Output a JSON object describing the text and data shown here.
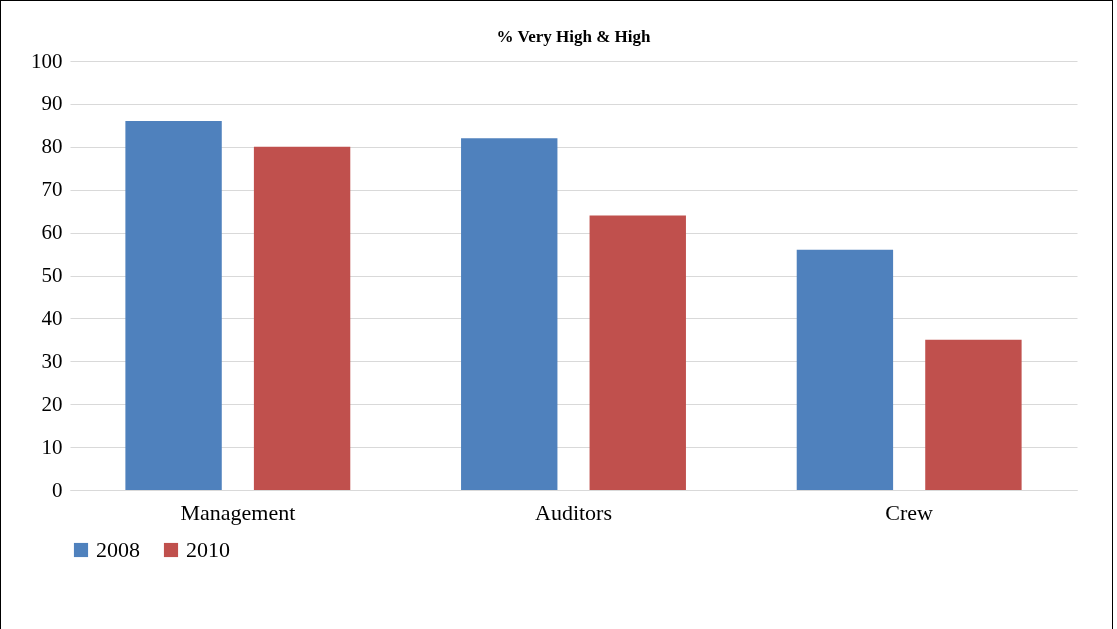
{
  "chart_data": {
    "type": "bar",
    "title": "% Very High & High",
    "categories": [
      "Management",
      "Auditors",
      "Crew"
    ],
    "series": [
      {
        "name": "2008",
        "color": "#4f81bd",
        "values": [
          86,
          82,
          56
        ]
      },
      {
        "name": "2010",
        "color": "#c0504d",
        "values": [
          80,
          64,
          35
        ]
      }
    ],
    "ylim": [
      0,
      100
    ],
    "yticks": [
      0,
      10,
      20,
      30,
      40,
      50,
      60,
      70,
      80,
      90,
      100
    ],
    "grid": "y",
    "legend": "bottom"
  }
}
